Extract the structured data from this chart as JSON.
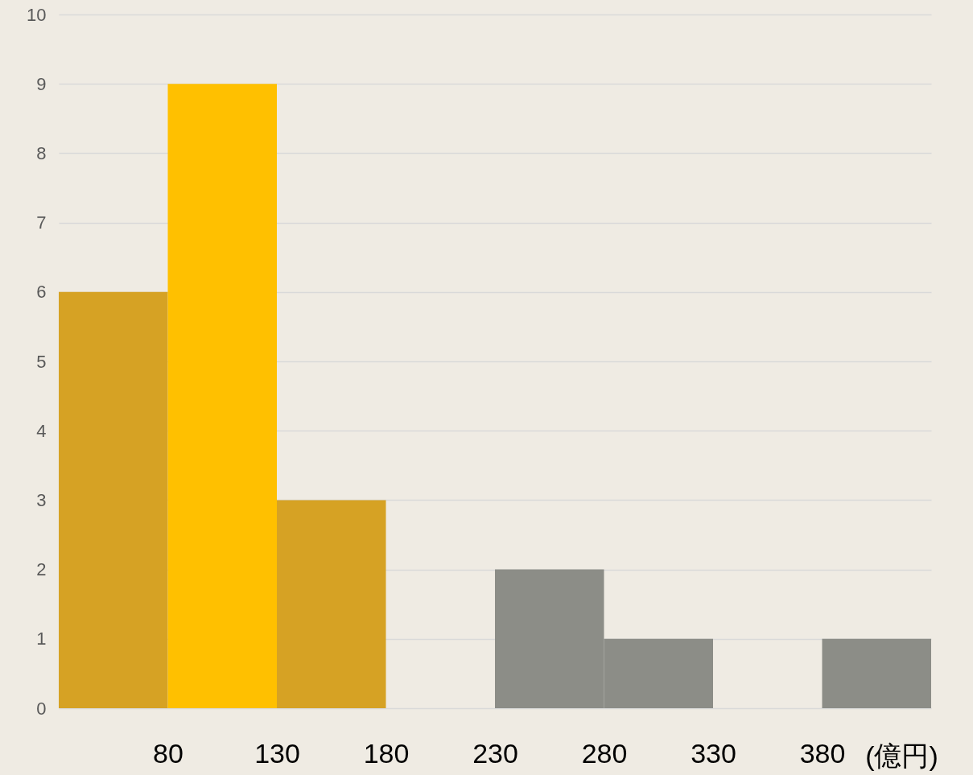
{
  "chart_data": {
    "type": "histogram",
    "xlabel": "(億円)",
    "bins": [
      30,
      80,
      130,
      180,
      230,
      280,
      330,
      380,
      430
    ],
    "values": [
      6,
      9,
      3,
      0,
      2,
      1,
      0,
      1
    ],
    "colors": [
      "#d6a224",
      "#ffc000",
      "#d6a224",
      "#d6a224",
      "#8c8d87",
      "#8c8d87",
      "#8c8d87",
      "#8c8d87"
    ],
    "xlim": [
      30,
      430
    ],
    "xticks": [
      80,
      130,
      180,
      230,
      280,
      330,
      380
    ],
    "ylim": [
      0,
      10
    ],
    "yticks": [
      0,
      1,
      2,
      3,
      4,
      5,
      6,
      7,
      8,
      9,
      10
    ],
    "grid": "y"
  }
}
